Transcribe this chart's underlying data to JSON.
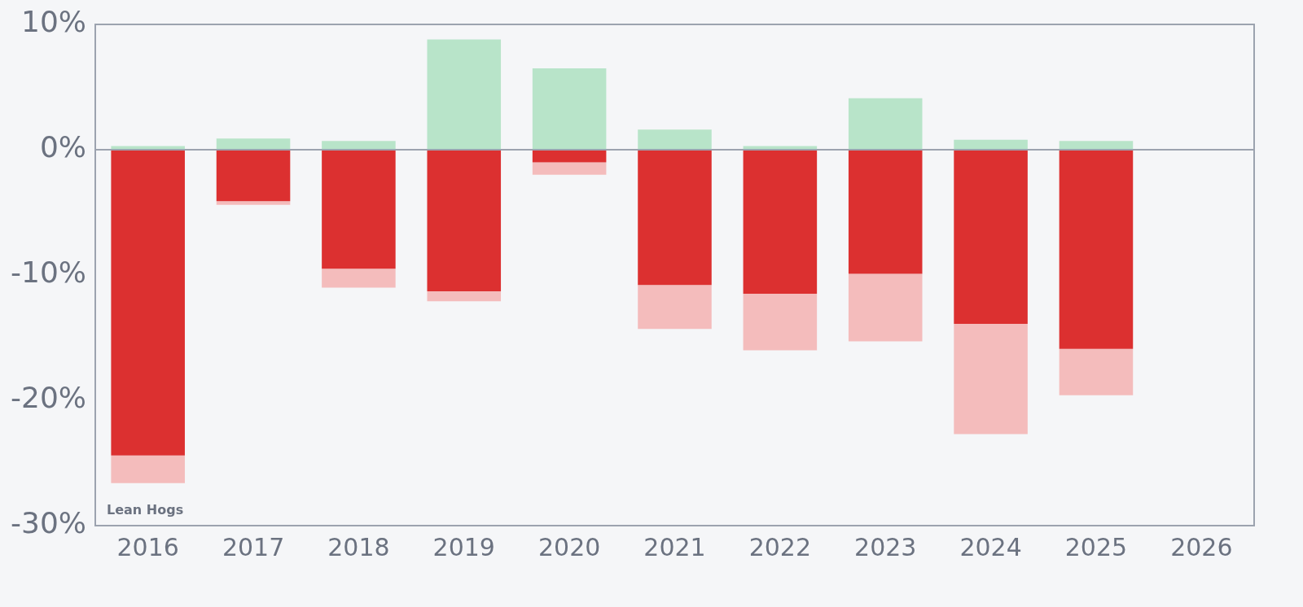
{
  "chart_data": {
    "type": "bar",
    "stacked": true,
    "categories": [
      "2016",
      "2017",
      "2018",
      "2019",
      "2020",
      "2021",
      "2022",
      "2023",
      "2024",
      "2025",
      "2026"
    ],
    "series": [
      {
        "color": "#b8e4c9",
        "values": [
          0.3,
          0.9,
          0.7,
          8.8,
          6.5,
          1.6,
          0.3,
          4.1,
          0.8,
          0.7,
          null
        ]
      },
      {
        "color": "#dc3030",
        "values": [
          -24.4,
          -4.1,
          -9.5,
          -11.3,
          -1.0,
          -10.8,
          -11.5,
          -9.9,
          -13.9,
          -15.9,
          null
        ]
      },
      {
        "color": "#f4bcbc",
        "values": [
          -2.2,
          -0.3,
          -1.5,
          -0.8,
          -1.0,
          -3.5,
          -4.5,
          -5.4,
          -8.8,
          -3.7,
          null
        ]
      }
    ],
    "ylim": [
      -30,
      10
    ],
    "yticks": [
      {
        "value": -30,
        "label": "-30%"
      },
      {
        "value": -20,
        "label": "-20%"
      },
      {
        "value": -10,
        "label": "-10%"
      },
      {
        "value": 0,
        "label": "0%"
      },
      {
        "value": 10,
        "label": "10%"
      }
    ],
    "ref_lines": [
      {
        "axis": "y",
        "value": 0,
        "color": "#9ca3af"
      }
    ],
    "annotations": [
      "Lean Hogs"
    ],
    "grid": false,
    "legend": false
  }
}
